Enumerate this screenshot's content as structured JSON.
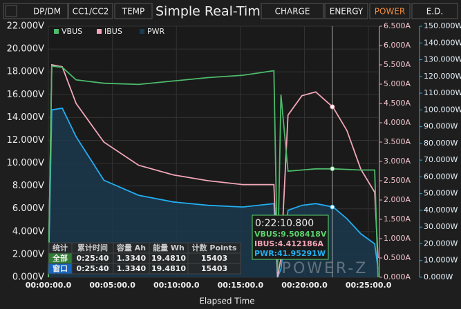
{
  "tabs": [
    "DP/DM",
    "CC1/CC2",
    "TEMP",
    "CHARGE",
    "ENERGY",
    "POWER",
    "E.D."
  ],
  "active_tab": 5,
  "chart_data": {
    "type": "line",
    "title": "Simple Real-Time Chart",
    "x_label": "Elapsed Time",
    "x": [
      0,
      16,
      65,
      130,
      260,
      423,
      586,
      748,
      911,
      1057,
      1074,
      1090,
      1123,
      1188,
      1253,
      1334,
      1399,
      1464,
      1529,
      1545
    ],
    "xlim": [
      0,
      1545
    ],
    "xticks": [
      {
        "value": 0,
        "label": "00:00:00.0"
      },
      {
        "value": 300,
        "label": "00:05:00.0"
      },
      {
        "value": 600,
        "label": "00:10:00.0"
      },
      {
        "value": 900,
        "label": "00:15:00.0"
      },
      {
        "value": 1200,
        "label": "00:20:00.0"
      },
      {
        "value": 1500,
        "label": "00:25:00.0"
      }
    ],
    "ylim": [
      0,
      22
    ],
    "yticks": [
      {
        "value": 0,
        "label": "0.000V"
      },
      {
        "value": 2,
        "label": "2.000V"
      },
      {
        "value": 4,
        "label": "4.000V"
      },
      {
        "value": 6,
        "label": "6.000V"
      },
      {
        "value": 8,
        "label": "8.000V"
      },
      {
        "value": 10,
        "label": "10.000V"
      },
      {
        "value": 12,
        "label": "12.000V"
      },
      {
        "value": 14,
        "label": "14.000V"
      },
      {
        "value": 16,
        "label": "16.000V"
      },
      {
        "value": 18,
        "label": "18.000V"
      },
      {
        "value": 20,
        "label": "20.000V"
      },
      {
        "value": 22,
        "label": "22.000V"
      }
    ],
    "y2lim": [
      0,
      6.5
    ],
    "y2ticks": [
      {
        "value": 0,
        "label": "0.000A"
      },
      {
        "value": 0.5,
        "label": "0.500A"
      },
      {
        "value": 1,
        "label": "1.000A"
      },
      {
        "value": 1.5,
        "label": "1.500A"
      },
      {
        "value": 2,
        "label": "2.000A"
      },
      {
        "value": 2.5,
        "label": "2.500A"
      },
      {
        "value": 3,
        "label": "3.000A"
      },
      {
        "value": 3.5,
        "label": "3.500A"
      },
      {
        "value": 4,
        "label": "4.000A"
      },
      {
        "value": 4.5,
        "label": "4.500A"
      },
      {
        "value": 5,
        "label": "5.000A"
      },
      {
        "value": 5.5,
        "label": "5.500A"
      },
      {
        "value": 6,
        "label": "6.000A"
      },
      {
        "value": 6.5,
        "label": "6.500A"
      }
    ],
    "y3lim": [
      0,
      150
    ],
    "y3ticks": [
      {
        "value": 0,
        "label": "0.000W"
      },
      {
        "value": 10,
        "label": "10.000W"
      },
      {
        "value": 20,
        "label": "20.000W"
      },
      {
        "value": 30,
        "label": "30.000W"
      },
      {
        "value": 40,
        "label": "40.000W"
      },
      {
        "value": 50,
        "label": "50.000W"
      },
      {
        "value": 60,
        "label": "60.000W"
      },
      {
        "value": 70,
        "label": "70.000W"
      },
      {
        "value": 80,
        "label": "80.000W"
      },
      {
        "value": 90,
        "label": "90.000W"
      },
      {
        "value": 100,
        "label": "100.000W"
      },
      {
        "value": 110,
        "label": "110.000W"
      },
      {
        "value": 120,
        "label": "120.000W"
      },
      {
        "value": 130,
        "label": "130.000W"
      },
      {
        "value": 140,
        "label": "140.000W"
      },
      {
        "value": 150,
        "label": "150.000W"
      }
    ],
    "grid": true,
    "legend": "top-left",
    "series": [
      {
        "name": "VBUS",
        "color": "#4cbb6c",
        "axis": "y",
        "values": [
          0,
          18.5,
          18.4,
          17.3,
          17.0,
          16.9,
          17.2,
          17.5,
          17.7,
          18.1,
          0.5,
          16,
          9.3,
          9.4,
          9.5,
          9.5,
          9.45,
          9.4,
          9.4,
          0
        ]
      },
      {
        "name": "IBUS",
        "color": "#f2a7b8",
        "axis": "y2",
        "values": [
          0,
          5.5,
          5.45,
          4.5,
          3.5,
          2.9,
          2.65,
          2.5,
          2.4,
          2.4,
          0,
          0.5,
          4.2,
          4.7,
          4.8,
          4.4,
          3.8,
          2.8,
          2.2,
          0.5
        ]
      },
      {
        "name": "PWR",
        "color": "#22aef0",
        "fill": "#1b3a4f",
        "axis": "y3",
        "values": [
          0,
          100,
          101,
          84,
          58,
          49,
          45,
          43,
          42,
          44,
          0,
          5,
          40,
          43,
          44,
          42,
          35,
          26,
          20,
          5
        ]
      }
    ],
    "cursor": {
      "x": 1330.8,
      "label": "0:22:10.800",
      "points": [
        {
          "value": 9.508418,
          "label": "VBUS:9.508418V"
        },
        {
          "value": 4.412186,
          "label": "IBUS:4.412186A"
        },
        {
          "value": 41.95291,
          "label": "PWR:41.95291W"
        }
      ]
    }
  },
  "stats_table": {
    "header": [
      "统计",
      "累计时间",
      "容量 Ah",
      "能量 Wh",
      "计数 Points"
    ],
    "rows": [
      [
        "全部",
        "0:25:40",
        "1.3340",
        "19.4810",
        "15403"
      ],
      [
        "窗口",
        "0:25:40",
        "1.3340",
        "19.4810",
        "15403"
      ]
    ]
  },
  "watermark": "POWER-Z"
}
